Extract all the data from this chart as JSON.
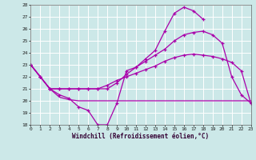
{
  "xlabel": "Windchill (Refroidissement éolien,°C)",
  "bg_color": "#cce8e8",
  "grid_color": "#ffffff",
  "line_color": "#aa00aa",
  "xlim": [
    0,
    23
  ],
  "ylim": [
    18,
    28
  ],
  "xticks": [
    0,
    1,
    2,
    3,
    4,
    5,
    6,
    7,
    8,
    9,
    10,
    11,
    12,
    13,
    14,
    15,
    16,
    17,
    18,
    19,
    20,
    21,
    22,
    23
  ],
  "yticks": [
    18,
    19,
    20,
    21,
    22,
    23,
    24,
    25,
    26,
    27,
    28
  ],
  "curve1_x": [
    0,
    1,
    2,
    3,
    4,
    5,
    6,
    7,
    8,
    9,
    10,
    11,
    12,
    13,
    14,
    15,
    16,
    17,
    18
  ],
  "curve1_y": [
    23,
    22,
    21,
    20.5,
    20.2,
    19.5,
    19.2,
    18.0,
    18.0,
    19.8,
    22.5,
    22.8,
    23.5,
    24.2,
    25.8,
    27.3,
    27.8,
    27.5,
    26.8
  ],
  "curve2_x": [
    0,
    1,
    2,
    3,
    4,
    5,
    6,
    7,
    8,
    9,
    10,
    11,
    12,
    13,
    14,
    15,
    16,
    17,
    18,
    19,
    20,
    21,
    22,
    23
  ],
  "curve2_y": [
    23,
    22,
    21,
    20.3,
    20.1,
    20.0,
    20.0,
    20.0,
    20.0,
    20.0,
    20.0,
    20.0,
    20.0,
    20.0,
    20.0,
    20.0,
    20.0,
    20.0,
    20.0,
    20.0,
    20.0,
    20.0,
    20.0,
    20.0
  ],
  "curve3_x": [
    0,
    1,
    2,
    3,
    4,
    5,
    6,
    7,
    8,
    9,
    10,
    11,
    12,
    13,
    14,
    15,
    16,
    17,
    18,
    19,
    20,
    21,
    22,
    23
  ],
  "curve3_y": [
    23,
    22,
    21,
    21,
    21,
    21,
    21.0,
    21.0,
    21.3,
    21.7,
    22.0,
    22.3,
    22.6,
    22.9,
    23.3,
    23.6,
    23.8,
    23.9,
    23.8,
    23.7,
    23.5,
    23.2,
    22.5,
    19.8
  ],
  "curve4_x": [
    0,
    1,
    2,
    3,
    4,
    5,
    6,
    7,
    8,
    9,
    10,
    11,
    12,
    13,
    14,
    15,
    16,
    17,
    18,
    19,
    20,
    21,
    22,
    23
  ],
  "curve4_y": [
    23,
    22,
    21,
    21,
    21,
    21,
    21.0,
    21.0,
    21.0,
    21.5,
    22.2,
    22.8,
    23.3,
    23.8,
    24.3,
    25.0,
    25.5,
    25.7,
    25.8,
    25.5,
    24.8,
    22.0,
    20.5,
    19.8
  ]
}
